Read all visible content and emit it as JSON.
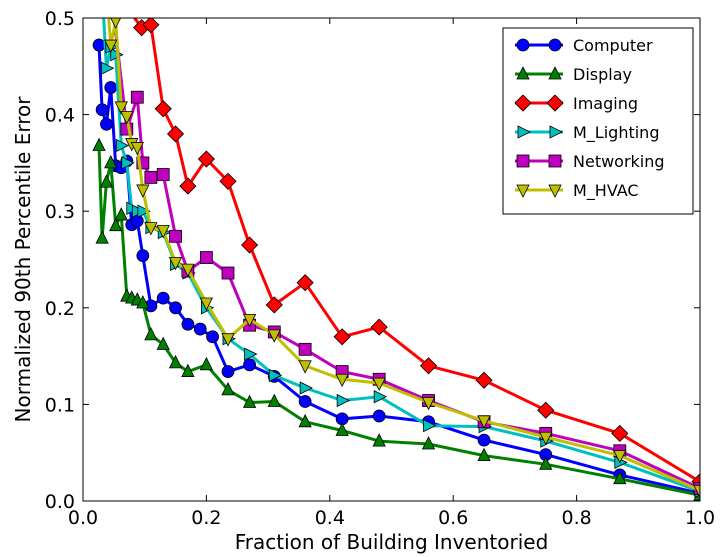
{
  "chart_data": {
    "type": "line",
    "xlabel": "Fraction of Building Inventoried",
    "ylabel": "Normalized 90th Percentile Error",
    "xlim": [
      0.0,
      1.0
    ],
    "ylim": [
      0.0,
      0.5
    ],
    "xticks": [
      "0.0",
      "0.2",
      "0.4",
      "0.6",
      "0.8",
      "1.0"
    ],
    "yticks": [
      "0.0",
      "0.1",
      "0.2",
      "0.3",
      "0.4",
      "0.5"
    ],
    "grid": false,
    "legend_position": "top-right",
    "series": [
      {
        "name": "Computer",
        "color": "#0000ff",
        "marker": "circle",
        "points": [
          [
            0.026,
            0.472
          ],
          [
            0.031,
            0.405
          ],
          [
            0.038,
            0.39
          ],
          [
            0.045,
            0.428
          ],
          [
            0.053,
            0.347
          ],
          [
            0.062,
            0.345
          ],
          [
            0.071,
            0.352
          ],
          [
            0.079,
            0.286
          ],
          [
            0.088,
            0.29
          ],
          [
            0.097,
            0.254
          ],
          [
            0.11,
            0.202
          ],
          [
            0.13,
            0.21
          ],
          [
            0.15,
            0.2
          ],
          [
            0.17,
            0.183
          ],
          [
            0.19,
            0.178
          ],
          [
            0.21,
            0.17
          ],
          [
            0.235,
            0.134
          ],
          [
            0.27,
            0.141
          ],
          [
            0.31,
            0.129
          ],
          [
            0.36,
            0.103
          ],
          [
            0.42,
            0.085
          ],
          [
            0.48,
            0.088
          ],
          [
            0.56,
            0.082
          ],
          [
            0.65,
            0.063
          ],
          [
            0.75,
            0.048
          ],
          [
            0.87,
            0.027
          ],
          [
            1.0,
            0.008
          ]
        ]
      },
      {
        "name": "Display",
        "color": "#008000",
        "marker": "triangle-up",
        "points": [
          [
            0.026,
            0.368
          ],
          [
            0.031,
            0.272
          ],
          [
            0.038,
            0.33
          ],
          [
            0.045,
            0.35
          ],
          [
            0.053,
            0.285
          ],
          [
            0.062,
            0.296
          ],
          [
            0.071,
            0.212
          ],
          [
            0.079,
            0.21
          ],
          [
            0.088,
            0.208
          ],
          [
            0.097,
            0.205
          ],
          [
            0.11,
            0.172
          ],
          [
            0.13,
            0.162
          ],
          [
            0.15,
            0.143
          ],
          [
            0.17,
            0.134
          ],
          [
            0.2,
            0.141
          ],
          [
            0.235,
            0.115
          ],
          [
            0.27,
            0.102
          ],
          [
            0.31,
            0.103
          ],
          [
            0.36,
            0.082
          ],
          [
            0.42,
            0.073
          ],
          [
            0.48,
            0.062
          ],
          [
            0.56,
            0.059
          ],
          [
            0.65,
            0.047
          ],
          [
            0.75,
            0.038
          ],
          [
            0.87,
            0.023
          ],
          [
            1.0,
            0.006
          ]
        ]
      },
      {
        "name": "Imaging",
        "color": "#ff0000",
        "marker": "diamond",
        "points": [
          [
            0.05,
            0.53
          ],
          [
            0.095,
            0.49
          ],
          [
            0.11,
            0.493
          ],
          [
            0.13,
            0.406
          ],
          [
            0.15,
            0.38
          ],
          [
            0.17,
            0.326
          ],
          [
            0.2,
            0.354
          ],
          [
            0.235,
            0.331
          ],
          [
            0.27,
            0.265
          ],
          [
            0.31,
            0.203
          ],
          [
            0.36,
            0.226
          ],
          [
            0.42,
            0.17
          ],
          [
            0.48,
            0.18
          ],
          [
            0.56,
            0.14
          ],
          [
            0.65,
            0.125
          ],
          [
            0.75,
            0.094
          ],
          [
            0.87,
            0.07
          ],
          [
            1.0,
            0.02
          ]
        ]
      },
      {
        "name": "M_Lighting",
        "color": "#00bfbf",
        "marker": "triangle-right",
        "points": [
          [
            0.031,
            0.53
          ],
          [
            0.038,
            0.448
          ],
          [
            0.045,
            0.47
          ],
          [
            0.053,
            0.462
          ],
          [
            0.062,
            0.368
          ],
          [
            0.071,
            0.35
          ],
          [
            0.079,
            0.303
          ],
          [
            0.088,
            0.3
          ],
          [
            0.097,
            0.3
          ],
          [
            0.11,
            0.283
          ],
          [
            0.13,
            0.278
          ],
          [
            0.15,
            0.245
          ],
          [
            0.17,
            0.236
          ],
          [
            0.2,
            0.2
          ],
          [
            0.235,
            0.168
          ],
          [
            0.27,
            0.152
          ],
          [
            0.31,
            0.13
          ],
          [
            0.36,
            0.117
          ],
          [
            0.42,
            0.104
          ],
          [
            0.48,
            0.108
          ],
          [
            0.56,
            0.078
          ],
          [
            0.65,
            0.077
          ],
          [
            0.75,
            0.062
          ],
          [
            0.87,
            0.04
          ],
          [
            1.0,
            0.01
          ]
        ]
      },
      {
        "name": "Networking",
        "color": "#bf00bf",
        "marker": "square",
        "points": [
          [
            0.045,
            0.53
          ],
          [
            0.071,
            0.385
          ],
          [
            0.088,
            0.418
          ],
          [
            0.097,
            0.35
          ],
          [
            0.11,
            0.335
          ],
          [
            0.13,
            0.338
          ],
          [
            0.15,
            0.274
          ],
          [
            0.17,
            0.238
          ],
          [
            0.2,
            0.252
          ],
          [
            0.235,
            0.236
          ],
          [
            0.27,
            0.182
          ],
          [
            0.31,
            0.175
          ],
          [
            0.36,
            0.157
          ],
          [
            0.42,
            0.134
          ],
          [
            0.48,
            0.126
          ],
          [
            0.56,
            0.104
          ],
          [
            0.65,
            0.082
          ],
          [
            0.75,
            0.07
          ],
          [
            0.87,
            0.052
          ],
          [
            1.0,
            0.013
          ]
        ]
      },
      {
        "name": "M_HVAC",
        "color": "#bfbf00",
        "marker": "triangle-down",
        "points": [
          [
            0.038,
            0.53
          ],
          [
            0.045,
            0.472
          ],
          [
            0.053,
            0.497
          ],
          [
            0.062,
            0.408
          ],
          [
            0.071,
            0.398
          ],
          [
            0.079,
            0.37
          ],
          [
            0.088,
            0.366
          ],
          [
            0.097,
            0.322
          ],
          [
            0.11,
            0.283
          ],
          [
            0.13,
            0.28
          ],
          [
            0.15,
            0.247
          ],
          [
            0.17,
            0.24
          ],
          [
            0.2,
            0.205
          ],
          [
            0.235,
            0.168
          ],
          [
            0.27,
            0.188
          ],
          [
            0.31,
            0.172
          ],
          [
            0.36,
            0.14
          ],
          [
            0.42,
            0.126
          ],
          [
            0.48,
            0.122
          ],
          [
            0.56,
            0.102
          ],
          [
            0.65,
            0.083
          ],
          [
            0.75,
            0.066
          ],
          [
            0.87,
            0.047
          ],
          [
            1.0,
            0.011
          ]
        ]
      }
    ]
  }
}
